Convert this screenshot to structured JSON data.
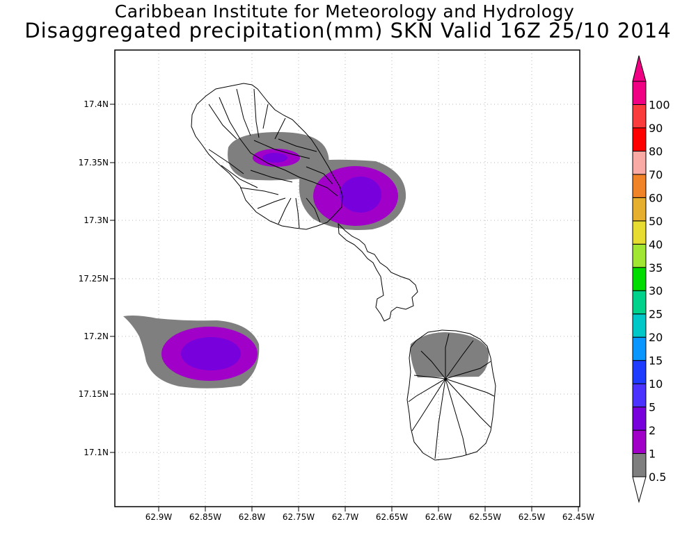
{
  "title": {
    "line1": "Caribbean Institute for Meteorology and Hydrology",
    "line2": "Disaggregated precipitation(mm) SKN Valid 16Z 25/10 2014"
  },
  "map": {
    "lon_range": [
      -62.9375,
      -62.4375
    ],
    "lat_range": [
      17.05,
      17.44
    ],
    "x_ticks": [
      "62.9W",
      "62.85W",
      "62.8W",
      "62.75W",
      "62.7W",
      "62.65W",
      "62.6W",
      "62.55W",
      "62.5W",
      "62.45W"
    ],
    "y_ticks": [
      "17.4N",
      "17.35N",
      "17.3N",
      "17.25N",
      "17.2N",
      "17.15N",
      "17.1N"
    ],
    "grid": "dotted",
    "islands": [
      "St. Kitts",
      "Nevis"
    ],
    "precipitation_areas": [
      {
        "center_lon": -62.765,
        "center_lat": 17.355,
        "max_class": "2-5"
      },
      {
        "center_lon": -62.68,
        "center_lat": 17.322,
        "max_class": "2-5"
      },
      {
        "center_lon": -62.84,
        "center_lat": 17.183,
        "max_class": "2-5"
      },
      {
        "center_lon": -62.57,
        "center_lat": 17.18,
        "max_class": "0.5-1"
      }
    ]
  },
  "colorbar": {
    "levels": [
      "0.5",
      "1",
      "2",
      "5",
      "10",
      "15",
      "20",
      "25",
      "30",
      "35",
      "40",
      "50",
      "60",
      "70",
      "80",
      "90",
      "100"
    ],
    "colors": [
      "#7f7f7f",
      "#a000c8",
      "#7800dc",
      "#4b32ff",
      "#1e3cff",
      "#0a96ff",
      "#00c8c8",
      "#00d28c",
      "#00dc00",
      "#a0e632",
      "#e6dc32",
      "#e6af2d",
      "#f08228",
      "#faaaa5",
      "#ff0000",
      "#fa3c3c",
      "#f00082"
    ]
  }
}
